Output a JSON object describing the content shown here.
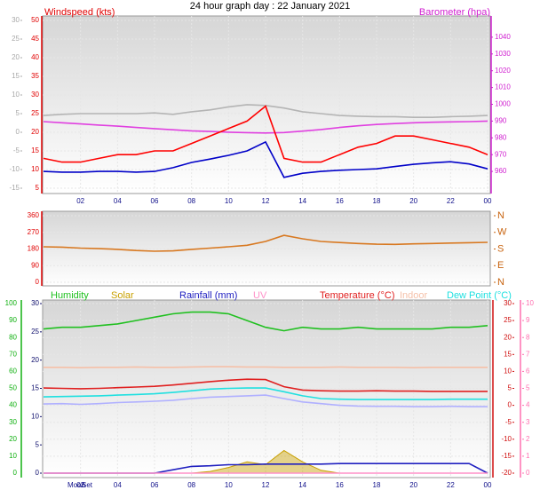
{
  "chart_data": [
    {
      "type": "line",
      "title": "24 hour graph day : 22 January 2021",
      "ylabel": "Windspeed (kts)",
      "y2label": "Barometer (hpa)",
      "ycolor": "#e00000",
      "y2color": "#d020d0",
      "y3color": "#a8a8a8",
      "x": [
        0,
        1,
        2,
        3,
        4,
        5,
        6,
        7,
        8,
        9,
        10,
        11,
        12,
        13,
        14,
        15,
        16,
        17,
        18,
        19,
        20,
        21,
        22,
        23,
        24
      ],
      "xlim": [
        0,
        24
      ],
      "xticks": [
        {
          "value": 2,
          "label": "02"
        },
        {
          "value": 4,
          "label": "04"
        },
        {
          "value": 6,
          "label": "06"
        },
        {
          "value": 8,
          "label": "08"
        },
        10,
        12,
        14,
        16,
        18,
        20,
        22,
        {
          "value": 24,
          "label": "00"
        }
      ],
      "ylim": [
        5,
        50
      ],
      "yticks": [
        50,
        45,
        40,
        35,
        30,
        25,
        20,
        15,
        10,
        5
      ],
      "y3lim": [
        -15,
        30
      ],
      "y3ticks": [
        30,
        25,
        20,
        15,
        10,
        5,
        0,
        -5,
        -10,
        -15
      ],
      "y2lim": [
        950,
        1050
      ],
      "y2ticks": [
        1040,
        1030,
        1020,
        1010,
        1000,
        990,
        980,
        970,
        960
      ],
      "grid": true,
      "series": [
        {
          "color": "#b4b4b4",
          "axis": "y3",
          "values": [
            4.5,
            4.8,
            5,
            5,
            5,
            5,
            5.2,
            4.8,
            5.5,
            6,
            6.8,
            7.4,
            7.2,
            6.5,
            5.5,
            5,
            4.5,
            4.3,
            4.2,
            4.2,
            4,
            4,
            4.2,
            4.3,
            4.5
          ]
        },
        {
          "color": "#e040e0",
          "axis": "y2",
          "values": [
            989.7,
            989,
            988.3,
            987.6,
            987,
            986.2,
            985.5,
            984.8,
            984.2,
            983.8,
            983.4,
            983.1,
            982.9,
            983.2,
            984,
            985,
            986.2,
            987.2,
            988,
            988.5,
            989,
            989.3,
            989.5,
            989.7,
            990
          ]
        },
        {
          "color": "#ff0000",
          "values": [
            13,
            12,
            12,
            13,
            14,
            14,
            15,
            15,
            17,
            19,
            21,
            23,
            27,
            13,
            12,
            12,
            14,
            16,
            17,
            19,
            19,
            18,
            17,
            16,
            14
          ]
        },
        {
          "color": "#0000c8",
          "values": [
            9.5,
            9.3,
            9.3,
            9.5,
            9.5,
            9.3,
            9.5,
            10.5,
            11.9,
            12.8,
            13.8,
            15,
            17.4,
            7.9,
            9,
            9.5,
            9.8,
            10,
            10.2,
            10.8,
            11.4,
            11.8,
            12.1,
            11.5,
            10.2
          ]
        }
      ]
    },
    {
      "type": "line",
      "ycolor": "#e00000",
      "y2color": "#c86410",
      "x": [
        0,
        1,
        2,
        3,
        4,
        5,
        6,
        7,
        8,
        9,
        10,
        11,
        12,
        13,
        14,
        15,
        16,
        17,
        18,
        19,
        20,
        21,
        22,
        23,
        24
      ],
      "xlim": [
        0,
        24
      ],
      "ylim": [
        0,
        360
      ],
      "yticks": [
        360,
        270,
        180,
        90,
        0
      ],
      "y2lim": [
        0,
        360
      ],
      "y2ticks": [
        {
          "value": 360,
          "label": "N"
        },
        {
          "value": 270,
          "label": "W"
        },
        {
          "value": 180,
          "label": "S"
        },
        {
          "value": 90,
          "label": "E"
        },
        {
          "value": 0,
          "label": "N"
        }
      ],
      "grid": true,
      "series": [
        {
          "color": "#d87820",
          "values": [
            192,
            190,
            185,
            182,
            178,
            172,
            168,
            170,
            178,
            185,
            192,
            200,
            221,
            254,
            235,
            221,
            215,
            210,
            206,
            205,
            208,
            210,
            212,
            214,
            216
          ]
        }
      ]
    },
    {
      "type": "line",
      "ycolor": "#10b010",
      "y2color": "#d01010",
      "y3color": "#10106e",
      "y4color": "#ff70b0",
      "x": [
        0,
        1,
        2,
        3,
        4,
        5,
        6,
        7,
        8,
        9,
        10,
        11,
        12,
        13,
        14,
        15,
        16,
        17,
        18,
        19,
        20,
        21,
        22,
        23,
        24
      ],
      "xlim": [
        0,
        24
      ],
      "xticks": [
        {
          "value": 2,
          "label": "02"
        },
        {
          "value": 4,
          "label": "04"
        },
        {
          "value": 6,
          "label": "06"
        },
        {
          "value": 8,
          "label": "08"
        },
        10,
        12,
        14,
        16,
        18,
        20,
        22,
        {
          "value": 24,
          "label": "00"
        }
      ],
      "ylim": [
        0,
        100
      ],
      "yticks": [
        100,
        90,
        80,
        70,
        60,
        50,
        40,
        30,
        20,
        10,
        0
      ],
      "y3lim": [
        0,
        30
      ],
      "y3ticks": [
        30,
        25,
        20,
        15,
        10,
        5,
        0
      ],
      "y2lim": [
        -20,
        30
      ],
      "y2ticks": [
        30,
        25,
        20,
        15,
        10,
        5,
        0,
        -5,
        -10,
        -15,
        -20
      ],
      "y4lim": [
        0,
        10
      ],
      "y4ticks": [
        10,
        9,
        8,
        7,
        6,
        5,
        4,
        3,
        2,
        1,
        0
      ],
      "grid": true,
      "annotations": [
        "Moon",
        "Set"
      ],
      "series": [
        {
          "name": "Humidity",
          "color": "#20c020",
          "values": [
            85,
            86,
            86,
            87,
            88,
            90,
            92,
            94,
            95,
            95,
            94,
            90,
            86,
            84,
            86,
            85,
            85,
            86,
            85,
            85,
            85,
            85,
            86,
            86,
            87
          ]
        },
        {
          "name": "Solar",
          "color": "#c8a000",
          "axis": "y3",
          "area": true,
          "values": [
            0,
            0,
            0,
            0,
            0,
            0,
            0,
            0,
            0,
            0.3,
            1,
            2,
            1.5,
            4,
            2,
            0.5,
            0,
            0,
            0,
            0,
            0,
            0,
            0,
            0,
            0
          ]
        },
        {
          "name": "Rainfall (mm)",
          "color": "#2020c0",
          "axis": "y3",
          "values": [
            0,
            0,
            0,
            0,
            0,
            0,
            0,
            0.6,
            1.2,
            1.3,
            1.5,
            1.5,
            1.6,
            1.6,
            1.6,
            1.6,
            1.7,
            1.7,
            1.7,
            1.7,
            1.7,
            1.7,
            1.7,
            1.7,
            0
          ]
        },
        {
          "name": "UV",
          "color": "#ff90c8",
          "axis": "y4",
          "values": [
            0,
            0,
            0,
            0,
            0,
            0,
            0,
            0,
            0,
            0,
            0,
            0,
            0,
            0,
            0,
            0,
            0,
            0,
            0,
            0,
            0,
            0,
            0,
            0,
            0
          ]
        },
        {
          "name": "Temperature (°C)",
          "color": "#e02020",
          "axis": "y2",
          "values": [
            5.1,
            5,
            4.9,
            5,
            5.2,
            5.4,
            5.6,
            6,
            6.5,
            7,
            7.4,
            7.7,
            7.6,
            5.5,
            4.5,
            4.3,
            4.2,
            4.2,
            4.3,
            4.2,
            4.2,
            4.1,
            4.1,
            4.1,
            4.1
          ]
        },
        {
          "name": "Indoor",
          "color": "#f5c0a8",
          "axis": "y2",
          "values": [
            11.2,
            11.2,
            11.1,
            11.2,
            11.2,
            11.3,
            11.2,
            11.2,
            11.3,
            11.4,
            11.4,
            11.3,
            11.3,
            11.2,
            11.2,
            11.2,
            11.3,
            11.2,
            11.2,
            11.2,
            11.1,
            11.2,
            11.2,
            11.2,
            11.2
          ]
        },
        {
          "name": "Dew Point (°C)",
          "color": "#20e0e0",
          "axis": "y2",
          "values": [
            2.5,
            2.6,
            2.7,
            2.8,
            3,
            3.2,
            3.4,
            3.8,
            4.3,
            4.8,
            5,
            5.1,
            5.1,
            4,
            2.8,
            2,
            1.8,
            1.7,
            1.7,
            1.7,
            1.7,
            1.7,
            1.8,
            1.8,
            1.8
          ]
        },
        {
          "color": "#b0b0ff",
          "axis": "y2",
          "values": [
            0.4,
            0.5,
            0.3,
            0.5,
            0.8,
            1,
            1.2,
            1.5,
            2,
            2.4,
            2.6,
            2.8,
            3,
            2,
            1,
            0.5,
            0,
            -0.2,
            -0.3,
            -0.3,
            -0.4,
            -0.4,
            -0.3,
            -0.4,
            -0.4
          ]
        }
      ]
    }
  ]
}
